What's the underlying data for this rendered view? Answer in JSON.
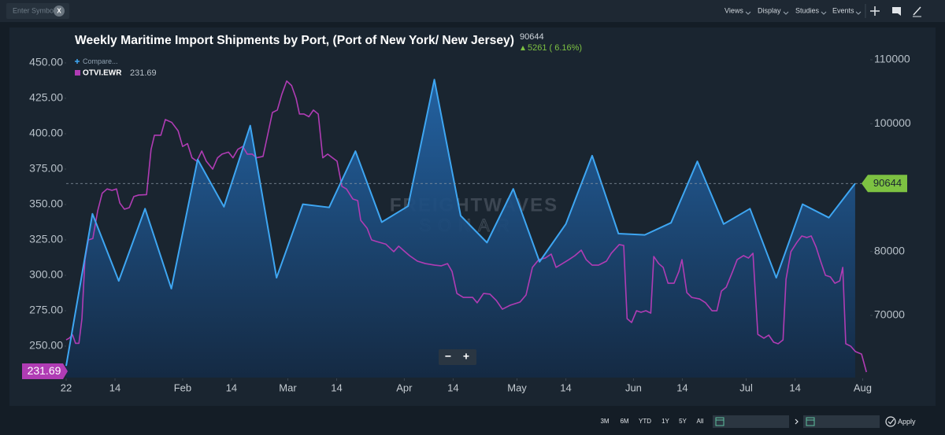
{
  "ui": {
    "symbol_placeholder": "Enter Symbol",
    "clear": "X",
    "menu": [
      "Views",
      "Display",
      "Studies",
      "Events"
    ],
    "ranges": [
      "3M",
      "6M",
      "YTD",
      "1Y",
      "5Y",
      "All"
    ],
    "apply": "Apply",
    "compare": "Compare...",
    "zoom": [
      "−",
      "+"
    ],
    "watermark": [
      "FREIGHTWAVES",
      "SONAR"
    ]
  },
  "chart_data": {
    "type": "line",
    "title": "Weekly Maritime Import Shipments by Port, (Port of New York/ New Jersey)",
    "change": 5261,
    "change_percent": {
      "value": 6.16,
      "label": "( 6.16%)"
    },
    "xlim": [
      0,
      214
    ],
    "xticks": [
      {
        "value": 0,
        "label": "22"
      },
      {
        "value": 13,
        "label": "14"
      },
      {
        "value": 31,
        "label": "Feb"
      },
      {
        "value": 44,
        "label": "14"
      },
      {
        "value": 59,
        "label": "Mar"
      },
      {
        "value": 72,
        "label": "14"
      },
      {
        "value": 90,
        "label": "Apr"
      },
      {
        "value": 103,
        "label": "14"
      },
      {
        "value": 120,
        "label": "May"
      },
      {
        "value": 133,
        "label": "14"
      },
      {
        "value": 151,
        "label": "Jun"
      },
      {
        "value": 164,
        "label": "14"
      },
      {
        "value": 181,
        "label": "Jul"
      },
      {
        "value": 194,
        "label": "14"
      },
      {
        "value": 212,
        "label": "Aug"
      }
    ],
    "ylim": [
      227.8,
      472.2
    ],
    "yticks": [
      {
        "value": 250,
        "label": "250.00"
      },
      {
        "value": 275,
        "label": "275.00"
      },
      {
        "value": 300,
        "label": "300.00"
      },
      {
        "value": 325,
        "label": "325.00"
      },
      {
        "value": 350,
        "label": "350.00"
      },
      {
        "value": 375,
        "label": "375.00"
      },
      {
        "value": 400,
        "label": "400.00"
      },
      {
        "value": 425,
        "label": "425.00"
      },
      {
        "value": 450,
        "label": "450.00"
      }
    ],
    "y2lim": [
      60277,
      114431
    ],
    "y2ticks": [
      70000,
      80000,
      100000,
      110000
    ],
    "grid": false,
    "series": [
      {
        "name": "OTVI.EWR",
        "color": "#b03cb4",
        "axis": "y",
        "x": [
          0,
          0.8,
          1.7,
          2.5,
          3.4,
          4.2,
          5.0,
          5.9,
          7.1,
          8.4,
          9.6,
          10.9,
          12.2,
          13.4,
          14.3,
          15.5,
          16.8,
          18.0,
          19.3,
          21.4,
          22.6,
          23.5,
          25.2,
          26.4,
          28.1,
          29.8,
          31.0,
          32.3,
          33.5,
          34.8,
          36.1,
          37.3,
          39.0,
          40.3,
          41.5,
          43.2,
          44.4,
          45.7,
          47.0,
          48.2,
          49.5,
          50.7,
          52.4,
          53.7,
          54.9,
          56.2,
          57.4,
          58.7,
          60.0,
          61.2,
          62.1,
          63.3,
          64.6,
          65.8,
          67.1,
          68.3,
          69.6,
          70.9,
          72.1,
          73.4,
          74.6,
          76.3,
          77.6,
          78.4,
          80.1,
          81.3,
          82.6,
          85.1,
          87.2,
          88.5,
          89.7,
          91.4,
          93.5,
          95.6,
          98.1,
          99.8,
          101.5,
          102.7,
          104.0,
          105.7,
          108.2,
          109.4,
          111.1,
          112.8,
          114.5,
          116.1,
          118.2,
          120.8,
          122.4,
          124.1,
          125.8,
          127.5,
          129.1,
          130.4,
          132.1,
          133.8,
          135.4,
          137.1,
          138.4,
          140.0,
          141.7,
          143.8,
          145.1,
          147.2,
          148.4,
          149.3,
          150.5,
          151.8,
          153.0,
          154.3,
          155.6,
          156.4,
          157.7,
          158.9,
          160.2,
          161.8,
          163.1,
          163.9,
          165.2,
          166.5,
          168.6,
          170.2,
          171.9,
          173.2,
          174.4,
          175.7,
          177.4,
          178.6,
          180.3,
          181.6,
          182.8,
          184.1,
          185.7,
          187.0,
          188.3,
          189.5,
          190.8,
          191.6,
          192.9,
          194.5,
          195.8,
          197.1,
          198.3,
          199.6,
          200.8,
          202.1,
          203.4,
          204.6,
          205.9,
          206.7,
          207.5,
          208.8,
          210.1,
          211.7,
          213.0
        ],
        "values": [
          254.4,
          255.6,
          258,
          252,
          252,
          269.4,
          311,
          325,
          326,
          345.6,
          358,
          361,
          360,
          361,
          351,
          346.7,
          347.8,
          355.6,
          356.7,
          357,
          388.9,
          398.9,
          398.9,
          410,
          408,
          402,
          391,
          393,
          383,
          380.6,
          387.8,
          380.6,
          375,
          383,
          385.6,
          387,
          383,
          389,
          391,
          385.6,
          385.6,
          383,
          384,
          400,
          415,
          416.7,
          427.8,
          437.2,
          434,
          425,
          413.9,
          413.9,
          412,
          416.7,
          413.9,
          383,
          385.6,
          383,
          380.6,
          362.8,
          361,
          353.9,
          352.8,
          338.9,
          333.3,
          325,
          323.9,
          322,
          316.7,
          320.6,
          317.8,
          313.9,
          310,
          308.3,
          307.2,
          306.7,
          308.3,
          302.8,
          287.2,
          284.4,
          284.4,
          280.6,
          287.2,
          286.7,
          282.2,
          276.1,
          278.9,
          281.1,
          286.1,
          305.6,
          311.1,
          312.2,
          315,
          305.6,
          308.3,
          311.1,
          313.9,
          317.8,
          311.1,
          307.2,
          307.2,
          310,
          315.6,
          321.7,
          321.1,
          269.4,
          266.7,
          275,
          273.9,
          275,
          273.3,
          313.3,
          308.3,
          305.6,
          294.4,
          294.4,
          302.8,
          311.1,
          287.8,
          284.4,
          283.3,
          280.6,
          275,
          275,
          288.9,
          291.7,
          302.8,
          311.1,
          313.9,
          312.2,
          315.6,
          258.3,
          255.6,
          257.8,
          252.8,
          251.7,
          254.4,
          297.2,
          316.7,
          323.3,
          327.8,
          326.7,
          327.8,
          320,
          310,
          300,
          298.9,
          294.4,
          296.1,
          305.6,
          251.7,
          250,
          246.1,
          244.4,
          231.69
        ]
      },
      {
        "color": "#3ea6f2",
        "axis": "y2",
        "fill": true,
        "x": [
          0,
          7,
          14,
          21,
          28,
          35,
          42,
          49,
          56,
          63,
          70,
          77,
          84,
          91,
          98,
          105,
          112,
          119,
          126,
          133,
          140,
          147,
          154,
          161,
          168,
          175,
          182,
          189,
          196,
          203,
          210
        ],
        "values": [
          62100,
          85900,
          75400,
          86700,
          74200,
          94400,
          87000,
          99700,
          75900,
          87400,
          86900,
          95700,
          84600,
          87100,
          106900,
          85600,
          81400,
          89800,
          78400,
          84300,
          95000,
          82800,
          82600,
          84500,
          94100,
          84300,
          86700,
          75900,
          87400,
          85300,
          90644
        ]
      }
    ]
  }
}
